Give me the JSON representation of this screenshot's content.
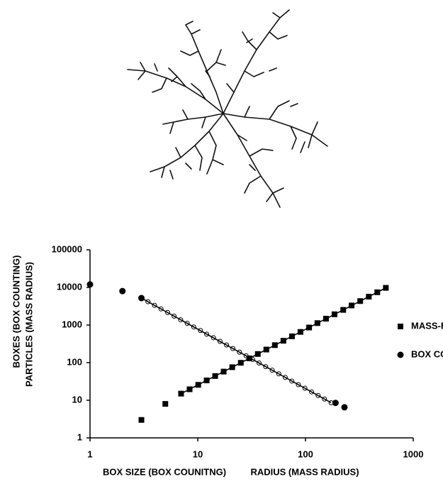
{
  "chart_data": {
    "type": "scatter",
    "xlabels": [
      "BOX SIZE (BOX COUNITNG)",
      "RADIUS (MASS RADIUS)"
    ],
    "ylabel": [
      "BOXES (BOX COUNTING)",
      "PARTICLES (MASS RADIUS)"
    ],
    "xscale": "log",
    "yscale": "log",
    "xlim": [
      1,
      1000
    ],
    "ylim": [
      1,
      100000
    ],
    "xticks": [
      1,
      10,
      100,
      1000
    ],
    "yticks": [
      1,
      10,
      100,
      1000,
      10000,
      100000
    ],
    "legend": "right",
    "series": [
      {
        "name": "MASS-RADIUS",
        "marker": "square",
        "color": "#000000",
        "x": [
          3,
          5,
          7,
          8.4,
          10.1,
          12.1,
          14.5,
          17.4,
          20.9,
          25.1,
          30.1,
          36.1,
          43.3,
          52,
          62.4,
          74.9,
          89.8,
          108,
          129,
          155,
          186,
          224,
          268,
          322,
          387,
          464,
          557
        ],
        "values": [
          3,
          8,
          15,
          19.6,
          25.7,
          33.7,
          44.1,
          57.8,
          75.7,
          99.1,
          130,
          170,
          223,
          292,
          382,
          501,
          656,
          859,
          1125,
          1473,
          1930,
          2527,
          3310,
          4335,
          5678,
          7436,
          9740
        ]
      },
      {
        "name": "BOX COUNTING",
        "marker": "circle",
        "color": "#000000",
        "x": [
          1,
          2,
          3,
          190,
          230
        ],
        "values": [
          12000,
          8000,
          5200,
          8.5,
          6.5
        ]
      },
      {
        "marker": "open-circle",
        "color": "#000000",
        "x": [
          3.45,
          3.97,
          4.56,
          5.25,
          6.03,
          6.94,
          7.98,
          9.18,
          10.6,
          12.1,
          14,
          16.1,
          18.5,
          21.2,
          24.4,
          28.1,
          32.3,
          37.1,
          42.7,
          49.1,
          56.5,
          64.9,
          74.7,
          85.9,
          98.8,
          114,
          131,
          150,
          173
        ],
        "values": [
          4170,
          3340,
          2680,
          2150,
          1720,
          1380,
          1110,
          889,
          713,
          572,
          459,
          368,
          295,
          237,
          190,
          152,
          122,
          97.8,
          78.4,
          62.9,
          50.4,
          40.5,
          32.4,
          26,
          20.9,
          16.7,
          13.4,
          10.8,
          8.6
        ]
      },
      {
        "marker": "line",
        "color": "#000000",
        "x": [
          7,
          557
        ],
        "values": [
          15,
          9740
        ]
      },
      {
        "marker": "line",
        "color": "#000000",
        "x": [
          3,
          173
        ],
        "values": [
          5200,
          8.6
        ]
      }
    ]
  }
}
